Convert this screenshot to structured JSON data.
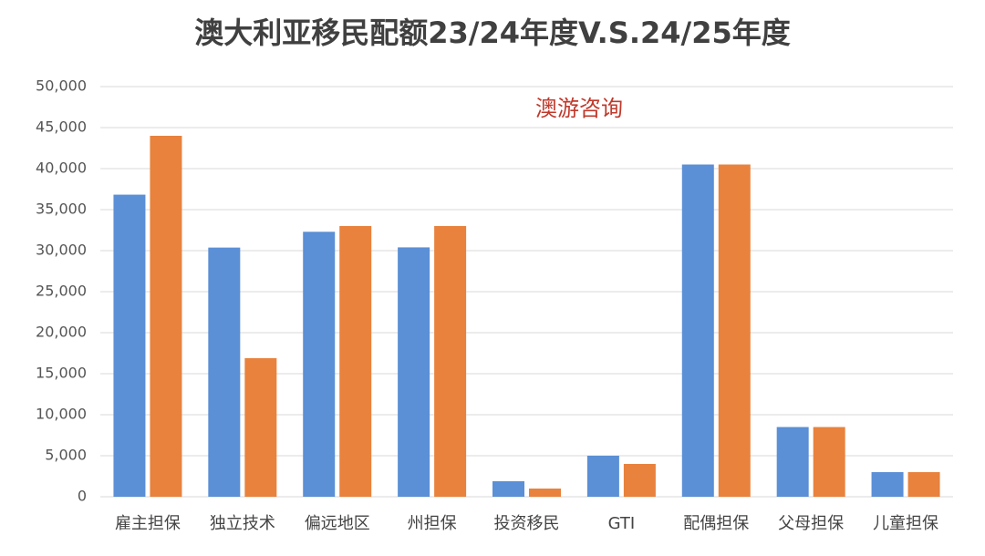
{
  "chart_data": {
    "type": "bar",
    "title": "澳大利亚移民配额23/24年度V.S.24/25年度",
    "annotation": "澳游咨询",
    "categories": [
      "雇主担保",
      "独立技术",
      "偏远地区",
      "州担保",
      "投资移民",
      "GTI",
      "配偶担保",
      "父母担保",
      "儿童担保"
    ],
    "series": [
      {
        "color": "#5b8fd6",
        "values": [
          36825,
          30375,
          32300,
          30400,
          1900,
          5000,
          40500,
          8500,
          3000
        ]
      },
      {
        "color": "#e8823d",
        "values": [
          44000,
          16900,
          33000,
          33000,
          1000,
          4000,
          40500,
          8500,
          3000
        ]
      }
    ],
    "ylim": [
      0,
      50000
    ],
    "yticks": [
      0,
      {
        "value": 5000,
        "label": "5,000"
      },
      {
        "value": 10000,
        "label": "10,000"
      },
      {
        "value": 15000,
        "label": "15,000"
      },
      {
        "value": 20000,
        "label": "20,000"
      },
      {
        "value": 25000,
        "label": "25,000"
      },
      {
        "value": 30000,
        "label": "30,000"
      },
      {
        "value": 35000,
        "label": "35,000"
      },
      {
        "value": 40000,
        "label": "40,000"
      },
      {
        "value": 45000,
        "label": "45,000"
      },
      {
        "value": 50000,
        "label": "50,000"
      }
    ],
    "grid": true
  }
}
